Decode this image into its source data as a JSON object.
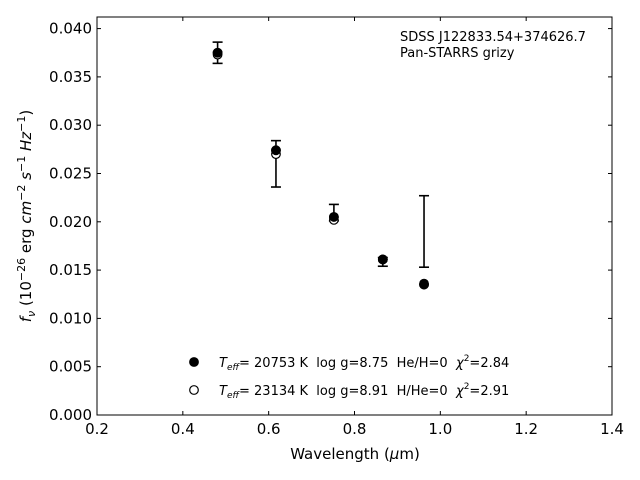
{
  "chart_data": {
    "type": "scatter",
    "xlim": [
      0.2,
      1.4
    ],
    "ylim": [
      0.0,
      0.0412
    ],
    "x_ticks": [
      0.2,
      0.4,
      0.6,
      0.8,
      1.0,
      1.2,
      1.4
    ],
    "x_tick_labels": [
      "0.2",
      "0.4",
      "0.6",
      "0.8",
      "1.0",
      "1.2",
      "1.4"
    ],
    "y_ticks": [
      0.0,
      0.005,
      0.01,
      0.015,
      0.02,
      0.025,
      0.03,
      0.035,
      0.04
    ],
    "y_tick_labels": [
      "0.000",
      "0.005",
      "0.010",
      "0.015",
      "0.020",
      "0.025",
      "0.030",
      "0.035",
      "0.040"
    ],
    "xlabel": "Wavelength (μm)",
    "ylabel": {
      "parts": [
        "f",
        "ν",
        " (10",
        "−26",
        " erg ",
        "cm",
        "−2",
        " ",
        "s",
        "−1",
        " ",
        "Hz",
        "−1",
        ")"
      ]
    },
    "annotation": {
      "line1": "SDSS J122833.54+374626.7",
      "line2": "Pan-STARRS grizy"
    },
    "observed": {
      "x": [
        0.481,
        0.617,
        0.752,
        0.866,
        0.962
      ],
      "y": [
        0.0375,
        0.0273,
        0.0205,
        0.0161,
        0.0135
      ],
      "y_low": [
        0.0364,
        0.0236,
        0.0201,
        0.0154,
        0.0153
      ],
      "y_high": [
        0.0386,
        0.0284,
        0.0218,
        0.0163,
        0.0227
      ]
    },
    "series": [
      {
        "name": "He/H=0",
        "marker": "filled",
        "x": [
          0.481,
          0.617,
          0.752,
          0.866,
          0.962
        ],
        "y": [
          0.0375,
          0.0274,
          0.0205,
          0.0161,
          0.0135
        ]
      },
      {
        "name": "H/He=0",
        "marker": "open",
        "x": [
          0.481,
          0.617,
          0.752,
          0.866,
          0.962
        ],
        "y": [
          0.0373,
          0.027,
          0.0202,
          0.0161,
          0.0136
        ]
      }
    ],
    "legend": {
      "placement": "lower-center",
      "entries": [
        {
          "teff_label": "T",
          "teff_sub": "eff",
          "teff_value": "= 20753 K",
          "logg": "log g=8.75",
          "comp": "He/H=0",
          "chi_label": "χ",
          "chi_sup": "2",
          "chi_value": "=2.84"
        },
        {
          "teff_label": "T",
          "teff_sub": "eff",
          "teff_value": "= 23134 K",
          "logg": "log g=8.91",
          "comp": "H/He=0",
          "chi_label": "χ",
          "chi_sup": "2",
          "chi_value": "=2.91"
        }
      ]
    },
    "colors": {
      "marker": "#000000",
      "errorbar": "#000000",
      "axes": "#000000"
    },
    "grid": false
  }
}
